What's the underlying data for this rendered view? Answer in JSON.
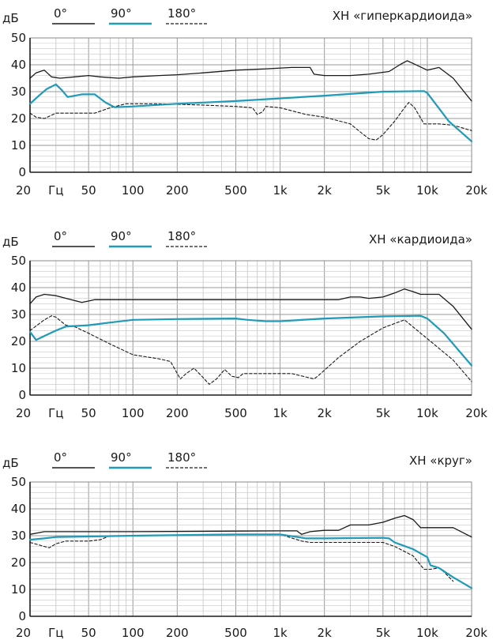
{
  "chart_data": [
    {
      "type": "line",
      "title": "ХН «гиперкардиоида»",
      "ylabel": "дБ",
      "xunit": "Гц",
      "xscale": "log",
      "xlim": [
        20,
        20000
      ],
      "ylim": [
        0,
        50
      ],
      "x_tick_labels": [
        "20",
        "Гц",
        "50",
        "100",
        "200",
        "500",
        "1k",
        "2k",
        "5k",
        "10k",
        "20k"
      ],
      "y_tick_labels": [
        "0",
        "10",
        "20",
        "30",
        "40",
        "50"
      ],
      "grid": true,
      "legend_placement": "top-left",
      "series": [
        {
          "name": "0°",
          "color": "#1a1a1a",
          "style": "solid",
          "points": [
            [
              20,
              35
            ],
            [
              22,
              37
            ],
            [
              25,
              38
            ],
            [
              28,
              35.5
            ],
            [
              32,
              35
            ],
            [
              40,
              35.5
            ],
            [
              50,
              36
            ],
            [
              60,
              35.5
            ],
            [
              80,
              35
            ],
            [
              100,
              35.5
            ],
            [
              150,
              36
            ],
            [
              200,
              36.3
            ],
            [
              300,
              37
            ],
            [
              500,
              38
            ],
            [
              800,
              38.5
            ],
            [
              1200,
              39
            ],
            [
              1600,
              39
            ],
            [
              1700,
              36.5
            ],
            [
              2000,
              36
            ],
            [
              3000,
              36
            ],
            [
              4000,
              36.5
            ],
            [
              5500,
              37.5
            ],
            [
              6500,
              40
            ],
            [
              7300,
              41.5
            ],
            [
              8000,
              40.5
            ],
            [
              10000,
              38
            ],
            [
              12000,
              39
            ],
            [
              15000,
              35
            ],
            [
              20000,
              26.5
            ]
          ]
        },
        {
          "name": "90°",
          "color": "#1f9ab8",
          "style": "solid",
          "points": [
            [
              20,
              25.5
            ],
            [
              23,
              28.5
            ],
            [
              26,
              31
            ],
            [
              30,
              32.7
            ],
            [
              33,
              30.5
            ],
            [
              36,
              28
            ],
            [
              45,
              29
            ],
            [
              55,
              29
            ],
            [
              65,
              26
            ],
            [
              75,
              24.2
            ],
            [
              100,
              24.5
            ],
            [
              200,
              25.5
            ],
            [
              500,
              26.5
            ],
            [
              1000,
              27.5
            ],
            [
              2000,
              28.5
            ],
            [
              5000,
              30
            ],
            [
              9500,
              30.2
            ],
            [
              10000,
              29.5
            ],
            [
              14000,
              19
            ],
            [
              20000,
              11.5
            ]
          ]
        },
        {
          "name": "180°",
          "color": "#1a1a1a",
          "style": "dashed",
          "points": [
            [
              20,
              22
            ],
            [
              22,
              20.5
            ],
            [
              25,
              20
            ],
            [
              30,
              22
            ],
            [
              40,
              22
            ],
            [
              55,
              22
            ],
            [
              70,
              24
            ],
            [
              90,
              25.5
            ],
            [
              150,
              25.5
            ],
            [
              300,
              25
            ],
            [
              500,
              24.5
            ],
            [
              650,
              24
            ],
            [
              700,
              21.5
            ],
            [
              760,
              22.5
            ],
            [
              800,
              24.5
            ],
            [
              1000,
              24
            ],
            [
              1500,
              21.5
            ],
            [
              2000,
              20.5
            ],
            [
              3000,
              18
            ],
            [
              3500,
              15
            ],
            [
              4000,
              12.5
            ],
            [
              4500,
              12
            ],
            [
              5000,
              14
            ],
            [
              6000,
              19
            ],
            [
              7000,
              24
            ],
            [
              7500,
              26
            ],
            [
              8200,
              24
            ],
            [
              9500,
              18
            ],
            [
              12000,
              18
            ],
            [
              15000,
              17.5
            ],
            [
              20000,
              15.5
            ]
          ]
        }
      ]
    },
    {
      "type": "line",
      "title": "ХН «кардиоида»",
      "ylabel": "дБ",
      "xunit": "Гц",
      "xscale": "log",
      "xlim": [
        20,
        20000
      ],
      "ylim": [
        0,
        50
      ],
      "x_tick_labels": [
        "20",
        "Гц",
        "50",
        "100",
        "200",
        "500",
        "1k",
        "2k",
        "5k",
        "10k",
        "20k"
      ],
      "y_tick_labels": [
        "0",
        "10",
        "20",
        "30",
        "40",
        "50"
      ],
      "grid": true,
      "legend_placement": "top-left",
      "series": [
        {
          "name": "0°",
          "color": "#1a1a1a",
          "style": "solid",
          "points": [
            [
              20,
              34
            ],
            [
              22,
              36.5
            ],
            [
              25,
              37.5
            ],
            [
              30,
              37
            ],
            [
              38,
              35.5
            ],
            [
              45,
              34.5
            ],
            [
              50,
              35
            ],
            [
              55,
              35.5
            ],
            [
              100,
              35.5
            ],
            [
              300,
              35.5
            ],
            [
              1000,
              35.5
            ],
            [
              2500,
              35.5
            ],
            [
              3000,
              36.5
            ],
            [
              3500,
              36.5
            ],
            [
              4000,
              36
            ],
            [
              5000,
              36.5
            ],
            [
              6000,
              38
            ],
            [
              7000,
              39.5
            ],
            [
              8000,
              38.5
            ],
            [
              9000,
              37.5
            ],
            [
              11000,
              37.5
            ],
            [
              12000,
              37.5
            ],
            [
              15000,
              33
            ],
            [
              20000,
              24.5
            ]
          ]
        },
        {
          "name": "90°",
          "color": "#1f9ab8",
          "style": "solid",
          "points": [
            [
              20,
              23.5
            ],
            [
              22,
              20.5
            ],
            [
              25,
              22
            ],
            [
              30,
              24
            ],
            [
              35,
              25.5
            ],
            [
              50,
              26
            ],
            [
              70,
              27
            ],
            [
              100,
              28
            ],
            [
              200,
              28.3
            ],
            [
              500,
              28.5
            ],
            [
              600,
              28
            ],
            [
              800,
              27.5
            ],
            [
              1000,
              27.5
            ],
            [
              2000,
              28.5
            ],
            [
              5000,
              29.3
            ],
            [
              9000,
              29.5
            ],
            [
              10000,
              28.5
            ],
            [
              13000,
              23
            ],
            [
              20000,
              11
            ]
          ]
        },
        {
          "name": "180°",
          "color": "#1a1a1a",
          "style": "dashed",
          "points": [
            [
              20,
              24
            ],
            [
              25,
              28
            ],
            [
              28,
              29.5
            ],
            [
              30,
              29
            ],
            [
              35,
              26
            ],
            [
              40,
              25.5
            ],
            [
              50,
              23
            ],
            [
              70,
              19
            ],
            [
              100,
              15
            ],
            [
              150,
              13.5
            ],
            [
              180,
              12.5
            ],
            [
              210,
              6
            ],
            [
              230,
              8
            ],
            [
              260,
              10
            ],
            [
              300,
              6.5
            ],
            [
              330,
              4
            ],
            [
              370,
              6
            ],
            [
              420,
              9.5
            ],
            [
              470,
              7
            ],
            [
              520,
              6.5
            ],
            [
              560,
              8
            ],
            [
              1200,
              8
            ],
            [
              1700,
              6
            ],
            [
              1800,
              7
            ],
            [
              2500,
              14
            ],
            [
              3500,
              20
            ],
            [
              5000,
              25
            ],
            [
              7000,
              28
            ],
            [
              10000,
              21
            ],
            [
              15000,
              13
            ],
            [
              20000,
              5
            ]
          ]
        }
      ]
    },
    {
      "type": "line",
      "title": "ХН «круг»",
      "ylabel": "дБ",
      "xunit": "Гц",
      "xscale": "log",
      "xlim": [
        20,
        20000
      ],
      "ylim": [
        0,
        50
      ],
      "x_tick_labels": [
        "20",
        "Гц",
        "50",
        "100",
        "200",
        "500",
        "1k",
        "2k",
        "5k",
        "10k",
        "20k"
      ],
      "y_tick_labels": [
        "0",
        "10",
        "20",
        "30",
        "40",
        "50"
      ],
      "grid": true,
      "legend_placement": "top-left",
      "series": [
        {
          "name": "0°",
          "color": "#1a1a1a",
          "style": "solid",
          "points": [
            [
              20,
              30.5
            ],
            [
              25,
              31.5
            ],
            [
              50,
              31.5
            ],
            [
              100,
              31.5
            ],
            [
              500,
              31.7
            ],
            [
              1000,
              31.8
            ],
            [
              1300,
              31.8
            ],
            [
              1400,
              30.5
            ],
            [
              1600,
              31.5
            ],
            [
              2000,
              32
            ],
            [
              2500,
              32
            ],
            [
              3000,
              34
            ],
            [
              4000,
              34
            ],
            [
              5000,
              35
            ],
            [
              6000,
              36.5
            ],
            [
              7000,
              37.5
            ],
            [
              8000,
              36
            ],
            [
              9000,
              33
            ],
            [
              10000,
              33
            ],
            [
              15000,
              33
            ],
            [
              20000,
              29.5
            ]
          ]
        },
        {
          "name": "90°",
          "color": "#1f9ab8",
          "style": "solid",
          "points": [
            [
              20,
              28.5
            ],
            [
              25,
              29
            ],
            [
              30,
              29.5
            ],
            [
              50,
              29.7
            ],
            [
              100,
              30
            ],
            [
              500,
              30.5
            ],
            [
              1000,
              30.5
            ],
            [
              1500,
              29
            ],
            [
              2000,
              29
            ],
            [
              5000,
              29.2
            ],
            [
              5500,
              29
            ],
            [
              6000,
              27.5
            ],
            [
              8000,
              25
            ],
            [
              10000,
              22
            ],
            [
              10500,
              19
            ],
            [
              12000,
              18
            ],
            [
              15000,
              14.5
            ],
            [
              20000,
              10.5
            ]
          ]
        },
        {
          "name": "180°",
          "color": "#1a1a1a",
          "style": "dashed",
          "points": [
            [
              20,
              27.5
            ],
            [
              25,
              26
            ],
            [
              27,
              25.5
            ],
            [
              30,
              27
            ],
            [
              35,
              28
            ],
            [
              45,
              28
            ],
            [
              50,
              28
            ],
            [
              60,
              28.5
            ],
            [
              70,
              30
            ],
            [
              100,
              30
            ],
            [
              500,
              30.5
            ],
            [
              1000,
              30.5
            ],
            [
              1400,
              28
            ],
            [
              1600,
              27.5
            ],
            [
              3000,
              27.5
            ],
            [
              5000,
              27.5
            ],
            [
              6000,
              26
            ],
            [
              8000,
              22.5
            ],
            [
              9500,
              17.5
            ],
            [
              10500,
              17.5
            ],
            [
              12000,
              18
            ],
            [
              13000,
              16.5
            ],
            [
              15000,
              13
            ]
          ]
        }
      ]
    }
  ]
}
